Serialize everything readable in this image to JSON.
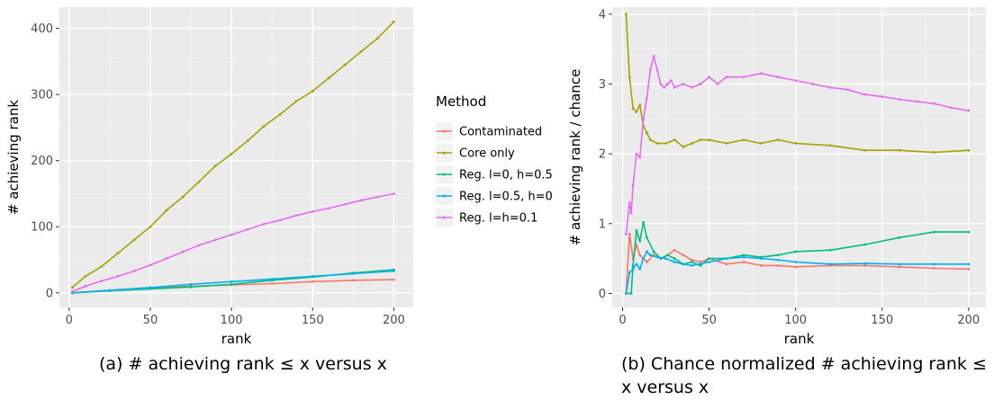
{
  "chart_data": [
    {
      "type": "line",
      "xlabel": "rank",
      "ylabel": "# achieving rank",
      "xlim": [
        -6,
        212
      ],
      "ylim": [
        -22,
        432
      ],
      "xticks": [
        0,
        50,
        100,
        150,
        200
      ],
      "yticks": [
        0,
        100,
        200,
        300,
        400
      ],
      "grid": true,
      "caption": "(a)  # achieving rank ≤ x versus x",
      "series": [
        {
          "name": "Contaminated",
          "color": "#F8766D",
          "x": [
            2,
            25,
            50,
            75,
            100,
            125,
            150,
            175,
            200
          ],
          "y": [
            0,
            4,
            8,
            10,
            12,
            14,
            17,
            19,
            20
          ]
        },
        {
          "name": "Core only",
          "color": "#A3A500",
          "x": [
            2,
            10,
            20,
            30,
            40,
            50,
            60,
            70,
            80,
            90,
            100,
            110,
            120,
            130,
            140,
            150,
            160,
            170,
            180,
            190,
            200
          ],
          "y": [
            8,
            25,
            40,
            60,
            80,
            100,
            125,
            145,
            168,
            192,
            210,
            230,
            252,
            270,
            290,
            305,
            325,
            345,
            365,
            385,
            410
          ]
        },
        {
          "name": "Reg. l=0, h=0.5",
          "color": "#00BF7D",
          "x": [
            2,
            25,
            50,
            75,
            100,
            125,
            150,
            175,
            200
          ],
          "y": [
            0,
            3,
            6,
            9,
            13,
            19,
            24,
            30,
            35
          ]
        },
        {
          "name": "Reg. l=0.5, h=0",
          "color": "#00B0F6",
          "x": [
            2,
            25,
            50,
            75,
            100,
            125,
            150,
            175,
            200
          ],
          "y": [
            0,
            4,
            8,
            13,
            17,
            21,
            25,
            29,
            33
          ]
        },
        {
          "name": "Reg. l=h=0.1",
          "color": "#E76BF3",
          "x": [
            2,
            10,
            20,
            30,
            40,
            50,
            60,
            70,
            80,
            90,
            100,
            110,
            120,
            130,
            140,
            150,
            160,
            170,
            180,
            190,
            200
          ],
          "y": [
            2,
            10,
            18,
            25,
            33,
            42,
            52,
            62,
            72,
            80,
            88,
            96,
            104,
            110,
            117,
            123,
            128,
            134,
            140,
            145,
            150
          ]
        }
      ]
    },
    {
      "type": "line",
      "xlabel": "rank",
      "ylabel": "# achieving rank / chance",
      "xlim": [
        -6,
        210
      ],
      "ylim": [
        -0.2,
        4.1
      ],
      "xticks": [
        0,
        50,
        100,
        150,
        200
      ],
      "yticks": [
        0,
        1,
        2,
        3,
        4
      ],
      "grid": true,
      "caption": "(b)  Chance normalized # achieving rank ≤ x versus x",
      "series": [
        {
          "name": "Contaminated",
          "color": "#F8766D",
          "x": [
            2,
            4,
            6,
            8,
            10,
            14,
            18,
            22,
            26,
            30,
            35,
            40,
            45,
            50,
            60,
            70,
            80,
            90,
            100,
            120,
            140,
            160,
            180,
            200
          ],
          "y": [
            0,
            0.85,
            0.5,
            0.7,
            0.55,
            0.45,
            0.55,
            0.5,
            0.55,
            0.62,
            0.55,
            0.48,
            0.45,
            0.5,
            0.42,
            0.45,
            0.4,
            0.4,
            0.38,
            0.4,
            0.4,
            0.38,
            0.36,
            0.35
          ]
        },
        {
          "name": "Core only",
          "color": "#A3A500",
          "x": [
            2,
            4,
            6,
            8,
            10,
            12,
            14,
            16,
            20,
            25,
            30,
            35,
            40,
            45,
            50,
            60,
            70,
            80,
            90,
            100,
            120,
            140,
            160,
            180,
            200
          ],
          "y": [
            4.0,
            3.1,
            2.65,
            2.6,
            2.7,
            2.4,
            2.3,
            2.2,
            2.15,
            2.15,
            2.2,
            2.1,
            2.15,
            2.2,
            2.2,
            2.15,
            2.2,
            2.15,
            2.2,
            2.15,
            2.12,
            2.05,
            2.05,
            2.02,
            2.05
          ]
        },
        {
          "name": "Reg. l=0, h=0.5",
          "color": "#00BF7D",
          "x": [
            2,
            5,
            6,
            8,
            10,
            12,
            14,
            18,
            22,
            26,
            30,
            35,
            40,
            45,
            50,
            60,
            70,
            80,
            90,
            100,
            120,
            140,
            160,
            180,
            200
          ],
          "y": [
            0,
            0,
            0.4,
            0.9,
            0.75,
            1.02,
            0.8,
            0.6,
            0.5,
            0.55,
            0.5,
            0.42,
            0.45,
            0.4,
            0.5,
            0.5,
            0.55,
            0.52,
            0.55,
            0.6,
            0.62,
            0.7,
            0.8,
            0.88,
            0.88
          ]
        },
        {
          "name": "Reg. l=0.5, h=0",
          "color": "#00B0F6",
          "x": [
            2,
            4,
            6,
            8,
            10,
            12,
            14,
            16,
            20,
            25,
            30,
            35,
            40,
            50,
            60,
            70,
            80,
            90,
            100,
            120,
            140,
            160,
            180,
            200
          ],
          "y": [
            0,
            0.3,
            0.35,
            0.42,
            0.35,
            0.5,
            0.6,
            0.55,
            0.52,
            0.5,
            0.45,
            0.42,
            0.4,
            0.45,
            0.5,
            0.52,
            0.5,
            0.48,
            0.45,
            0.42,
            0.43,
            0.42,
            0.42,
            0.42
          ]
        },
        {
          "name": "Reg. l=h=0.1",
          "color": "#E76BF3",
          "x": [
            2,
            4,
            5,
            6,
            8,
            10,
            12,
            14,
            16,
            18,
            20,
            22,
            24,
            26,
            28,
            30,
            35,
            40,
            45,
            50,
            55,
            60,
            70,
            80,
            90,
            100,
            110,
            120,
            130,
            140,
            150,
            160,
            170,
            180,
            190,
            200
          ],
          "y": [
            0.85,
            1.3,
            1.15,
            1.55,
            2.0,
            1.95,
            2.5,
            2.8,
            3.2,
            3.4,
            3.2,
            3.0,
            2.95,
            3.0,
            3.05,
            2.95,
            3.0,
            2.95,
            3.0,
            3.1,
            3.0,
            3.1,
            3.1,
            3.15,
            3.1,
            3.05,
            3.0,
            2.95,
            2.92,
            2.85,
            2.82,
            2.78,
            2.75,
            2.72,
            2.66,
            2.62
          ]
        }
      ]
    }
  ],
  "legend": {
    "title": "Method",
    "items": [
      {
        "label": "Contaminated",
        "color": "#F8766D"
      },
      {
        "label": "Core only",
        "color": "#A3A500"
      },
      {
        "label": "Reg. l=0, h=0.5",
        "color": "#00BF7D"
      },
      {
        "label": "Reg. l=0.5, h=0",
        "color": "#00B0F6"
      },
      {
        "label": "Reg. l=h=0.1",
        "color": "#E76BF3"
      }
    ]
  }
}
